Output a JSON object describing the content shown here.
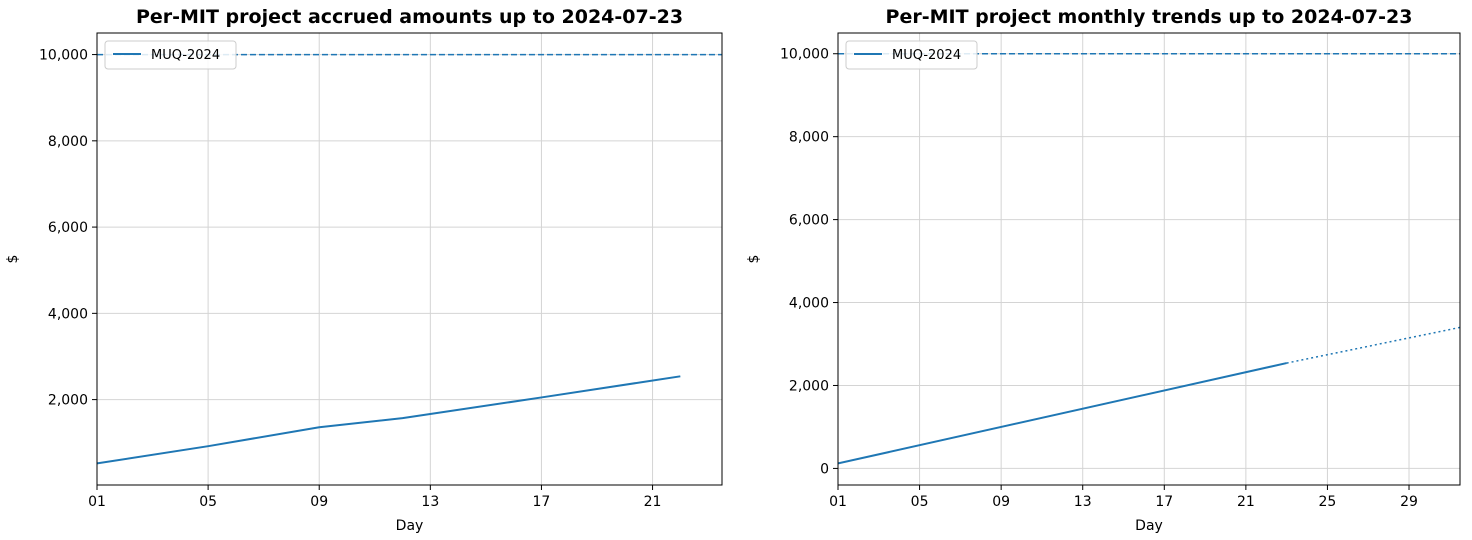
{
  "chart_data": [
    {
      "type": "line",
      "title": "Per-MIT project accrued amounts up to 2024-07-23",
      "xlabel": "Day",
      "ylabel": "$",
      "xlim": [
        1,
        23.5
      ],
      "ylim": [
        20,
        10500
      ],
      "x_ticks": [
        1,
        5,
        9,
        13,
        17,
        21
      ],
      "x_tick_labels": [
        "01",
        "05",
        "09",
        "13",
        "17",
        "21"
      ],
      "y_ticks": [
        2000,
        4000,
        6000,
        8000,
        10000
      ],
      "y_tick_labels": [
        "2,000",
        "4,000",
        "6,000",
        "8,000",
        "10,000"
      ],
      "grid": true,
      "legend": "upper-left",
      "series": [
        {
          "name": "MUQ-2024",
          "color": "#1f77b4",
          "x": [
            1,
            5,
            9,
            12,
            17,
            22
          ],
          "y": [
            520,
            920,
            1360,
            1570,
            2050,
            2540
          ]
        }
      ],
      "reference_lines": [
        {
          "y": 10000,
          "style": "dashed",
          "color": "#1f77b4"
        }
      ]
    },
    {
      "type": "line",
      "title": "Per-MIT project monthly trends up to 2024-07-23",
      "xlabel": "Day",
      "ylabel": "$",
      "xlim": [
        1,
        31.5
      ],
      "ylim": [
        -400,
        10500
      ],
      "x_ticks": [
        1,
        5,
        9,
        13,
        17,
        21,
        25,
        29
      ],
      "x_tick_labels": [
        "01",
        "05",
        "09",
        "13",
        "17",
        "21",
        "25",
        "29"
      ],
      "y_ticks": [
        0,
        2000,
        4000,
        6000,
        8000,
        10000
      ],
      "y_tick_labels": [
        "0",
        "2,000",
        "4,000",
        "6,000",
        "8,000",
        "10,000"
      ],
      "grid": true,
      "legend": "upper-left",
      "series": [
        {
          "name": "MUQ-2024",
          "color": "#1f77b4",
          "x": [
            1,
            23
          ],
          "y": [
            120,
            2540
          ],
          "projection": {
            "x": [
              23,
              31.5
            ],
            "y": [
              2540,
              3400
            ],
            "style": "dotted"
          }
        }
      ],
      "reference_lines": [
        {
          "y": 10000,
          "style": "dashed",
          "color": "#1f77b4"
        }
      ]
    }
  ]
}
